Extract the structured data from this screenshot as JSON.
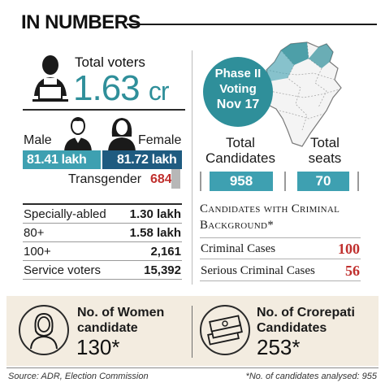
{
  "header": {
    "title": "IN NUMBERS"
  },
  "voters": {
    "total_label": "Total voters",
    "total_value": "1.63",
    "total_unit": "cr",
    "male_label": "Male",
    "male_value": "81.41 lakh",
    "female_label": "Female",
    "female_value": "81.72 lakh",
    "transgender_label": "Transgender",
    "transgender_value": "684"
  },
  "voter_categories": [
    {
      "label": "Specially-abled",
      "value": "1.30 lakh"
    },
    {
      "label": "80+",
      "value": "1.58 lakh"
    },
    {
      "label": "100+",
      "value": "2,161"
    },
    {
      "label": "Service voters",
      "value": "15,392"
    }
  ],
  "phase": {
    "line1": "Phase II",
    "line2": "Voting",
    "line3": "Nov 17"
  },
  "candidates": {
    "total_label": "Total Candidates",
    "total_value": "958",
    "seats_label": "Total seats",
    "seats_value": "70"
  },
  "criminal": {
    "heading": "Candidates with Criminal Background*",
    "rows": [
      {
        "label": "Criminal Cases",
        "value": "100"
      },
      {
        "label": "Serious Criminal Cases",
        "value": "56"
      }
    ]
  },
  "women": {
    "label": "No. of Women candidate",
    "value": "130*"
  },
  "crorepati": {
    "label": "No. of Crorepati Candidates",
    "value": "253*"
  },
  "footer": {
    "source": "Source: ADR, Election Commission",
    "note": "*No. of candidates analysed: 955"
  },
  "colors": {
    "accent_teal": "#3ea0b1",
    "accent_dark_blue": "#1f5b80",
    "highlight_red": "#c0302e",
    "band_beige": "#f3ece0"
  },
  "icons": [
    "voter-at-laptop-icon",
    "male-person-icon",
    "female-person-icon",
    "state-map-icon",
    "woman-candidate-icon",
    "cash-stack-icon"
  ]
}
